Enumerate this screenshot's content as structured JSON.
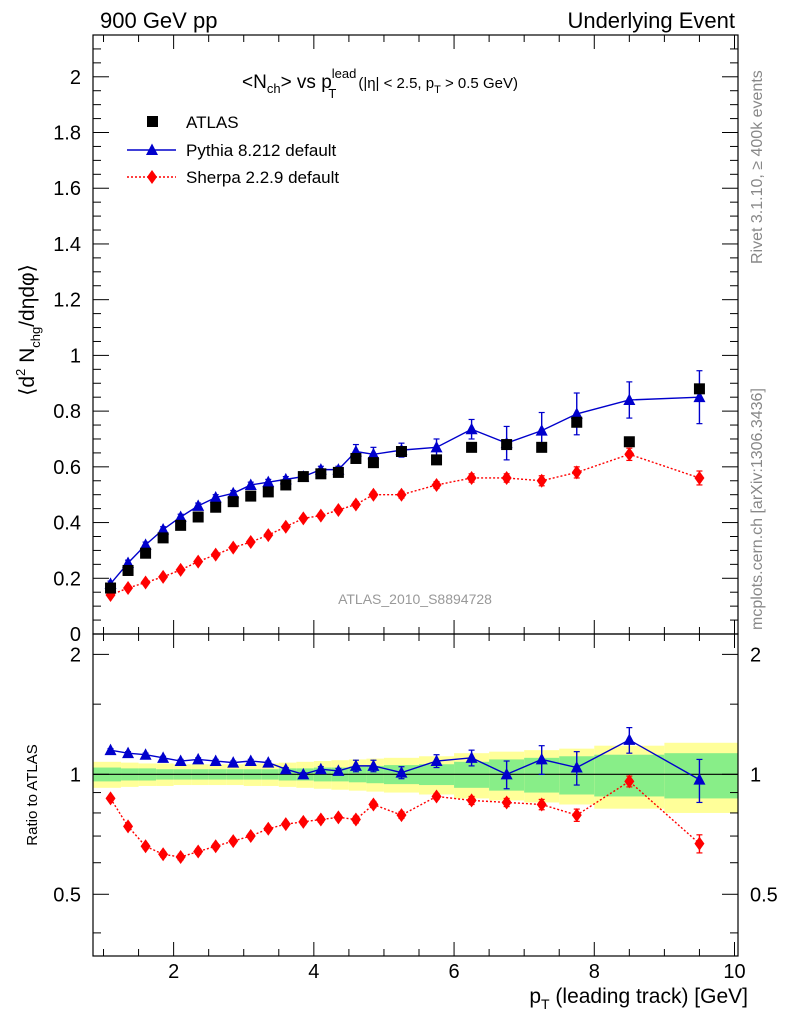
{
  "header": {
    "left": "900 GeV pp",
    "right": "Underlying Event"
  },
  "side_text": {
    "top": "Rivet 3.1.10, ≥ 400k events",
    "bottom": "mcplots.cern.ch [arXiv:1306.3436]"
  },
  "chart_data": {
    "type": "scatter",
    "title_parts": {
      "main": "<N",
      "main_sub": "ch",
      "vs": "> vs p",
      "vs_sup": "lead",
      "vs_sub": "T",
      "cuts_a": "(|η| < 2.5, p",
      "cuts_sub": "T",
      "cuts_b": " > 0.5 GeV)"
    },
    "ylabel_parts": {
      "a": "⟨d",
      "sup": "2",
      "b": " N",
      "sub": "chg",
      "c": "/dηdφ⟩"
    },
    "xlabel_parts": {
      "a": "p",
      "sub": "T",
      "b": " (leading track) [GeV]"
    },
    "analysis_label": "ATLAS_2010_S8894728",
    "xlim": [
      0.85,
      10.05
    ],
    "xticks": [
      "2",
      "4",
      "6",
      "8",
      "10"
    ],
    "xtick_values": [
      2,
      4,
      6,
      8,
      10
    ],
    "main_panel": {
      "ylim": [
        0,
        2.15
      ],
      "yticks": [
        "0",
        "0.2",
        "0.4",
        "0.6",
        "0.8",
        "1",
        "1.2",
        "1.4",
        "1.6",
        "1.8",
        "2"
      ],
      "ytick_values": [
        0,
        0.2,
        0.4,
        0.6,
        0.8,
        1,
        1.2,
        1.4,
        1.6,
        1.8,
        2
      ]
    },
    "ratio_panel": {
      "ylabel": "Ratio to ATLAS",
      "ylim": [
        0.35,
        2.25
      ],
      "yticks": [
        "0.5",
        "1",
        "2"
      ],
      "ytick_values": [
        0.5,
        1,
        2
      ]
    },
    "x": [
      1.1,
      1.35,
      1.6,
      1.85,
      2.1,
      2.35,
      2.6,
      2.85,
      3.1,
      3.35,
      3.6,
      3.85,
      4.1,
      4.35,
      4.6,
      4.85,
      5.25,
      5.75,
      6.25,
      6.75,
      7.25,
      7.75,
      8.5,
      9.5
    ],
    "series": [
      {
        "name": "ATLAS",
        "color": "#000000",
        "marker": "square",
        "values": [
          0.165,
          0.228,
          0.29,
          0.345,
          0.39,
          0.42,
          0.455,
          0.475,
          0.495,
          0.51,
          0.535,
          0.565,
          0.575,
          0.58,
          0.63,
          0.615,
          0.655,
          0.625,
          0.67,
          0.68,
          0.67,
          0.76,
          0.69,
          0.88
        ]
      },
      {
        "name": "Pythia 8.212 default",
        "color": "#0000cc",
        "marker": "triangle",
        "line": "solid",
        "values": [
          0.18,
          0.255,
          0.32,
          0.375,
          0.42,
          0.46,
          0.49,
          0.505,
          0.535,
          0.545,
          0.555,
          0.565,
          0.59,
          0.59,
          0.655,
          0.645,
          0.66,
          0.67,
          0.735,
          0.685,
          0.73,
          0.79,
          0.84,
          0.85
        ],
        "errors": [
          0.01,
          0.01,
          0.01,
          0.01,
          0.01,
          0.01,
          0.01,
          0.01,
          0.01,
          0.01,
          0.01,
          0.01,
          0.012,
          0.012,
          0.025,
          0.025,
          0.025,
          0.03,
          0.035,
          0.06,
          0.065,
          0.075,
          0.065,
          0.095
        ],
        "ratio": [
          1.15,
          1.13,
          1.12,
          1.1,
          1.08,
          1.09,
          1.08,
          1.07,
          1.08,
          1.07,
          1.03,
          1.0,
          1.03,
          1.02,
          1.05,
          1.05,
          1.01,
          1.08,
          1.1,
          1.0,
          1.09,
          1.04,
          1.22,
          0.97
        ],
        "ratio_errors": [
          0.01,
          0.01,
          0.01,
          0.01,
          0.01,
          0.01,
          0.01,
          0.01,
          0.01,
          0.01,
          0.01,
          0.01,
          0.015,
          0.015,
          0.035,
          0.035,
          0.035,
          0.04,
          0.05,
          0.08,
          0.09,
          0.1,
          0.09,
          0.12
        ]
      },
      {
        "name": "Sherpa 2.2.9 default",
        "color": "#ff0000",
        "marker": "diamond",
        "line": "dotted",
        "values": [
          0.14,
          0.165,
          0.185,
          0.205,
          0.23,
          0.26,
          0.285,
          0.31,
          0.33,
          0.355,
          0.385,
          0.415,
          0.425,
          0.445,
          0.465,
          0.5,
          0.5,
          0.535,
          0.56,
          0.56,
          0.55,
          0.58,
          0.645,
          0.56
        ],
        "errors": [
          0.006,
          0.006,
          0.006,
          0.006,
          0.006,
          0.006,
          0.006,
          0.006,
          0.006,
          0.006,
          0.006,
          0.008,
          0.008,
          0.008,
          0.01,
          0.01,
          0.012,
          0.012,
          0.015,
          0.015,
          0.018,
          0.02,
          0.022,
          0.025
        ],
        "ratio": [
          0.87,
          0.74,
          0.66,
          0.63,
          0.62,
          0.64,
          0.66,
          0.68,
          0.7,
          0.73,
          0.75,
          0.76,
          0.77,
          0.78,
          0.77,
          0.84,
          0.79,
          0.88,
          0.86,
          0.85,
          0.84,
          0.79,
          0.96,
          0.67
        ],
        "ratio_errors": [
          0.01,
          0.01,
          0.01,
          0.01,
          0.01,
          0.01,
          0.01,
          0.01,
          0.01,
          0.01,
          0.01,
          0.012,
          0.012,
          0.012,
          0.015,
          0.015,
          0.015,
          0.015,
          0.02,
          0.02,
          0.025,
          0.028,
          0.03,
          0.035
        ]
      }
    ],
    "ratio_bands": {
      "x_edges": [
        0.85,
        1.25,
        1.5,
        1.75,
        2.0,
        2.25,
        2.5,
        2.75,
        3.0,
        3.25,
        3.5,
        3.75,
        4.0,
        4.25,
        4.5,
        4.75,
        5.0,
        5.5,
        6.0,
        6.5,
        7.0,
        7.5,
        8.0,
        9.0,
        10.05
      ],
      "stat_half_width": [
        0.04,
        0.035,
        0.035,
        0.03,
        0.03,
        0.03,
        0.03,
        0.03,
        0.03,
        0.03,
        0.035,
        0.035,
        0.04,
        0.04,
        0.045,
        0.05,
        0.055,
        0.06,
        0.075,
        0.09,
        0.1,
        0.11,
        0.12,
        0.13
      ],
      "total_half_width": [
        0.075,
        0.07,
        0.065,
        0.065,
        0.06,
        0.06,
        0.06,
        0.06,
        0.065,
        0.065,
        0.07,
        0.075,
        0.08,
        0.085,
        0.09,
        0.095,
        0.1,
        0.11,
        0.13,
        0.14,
        0.15,
        0.16,
        0.18,
        0.2
      ],
      "stat_color": "#88ee88",
      "total_color": "#ffff99"
    }
  }
}
